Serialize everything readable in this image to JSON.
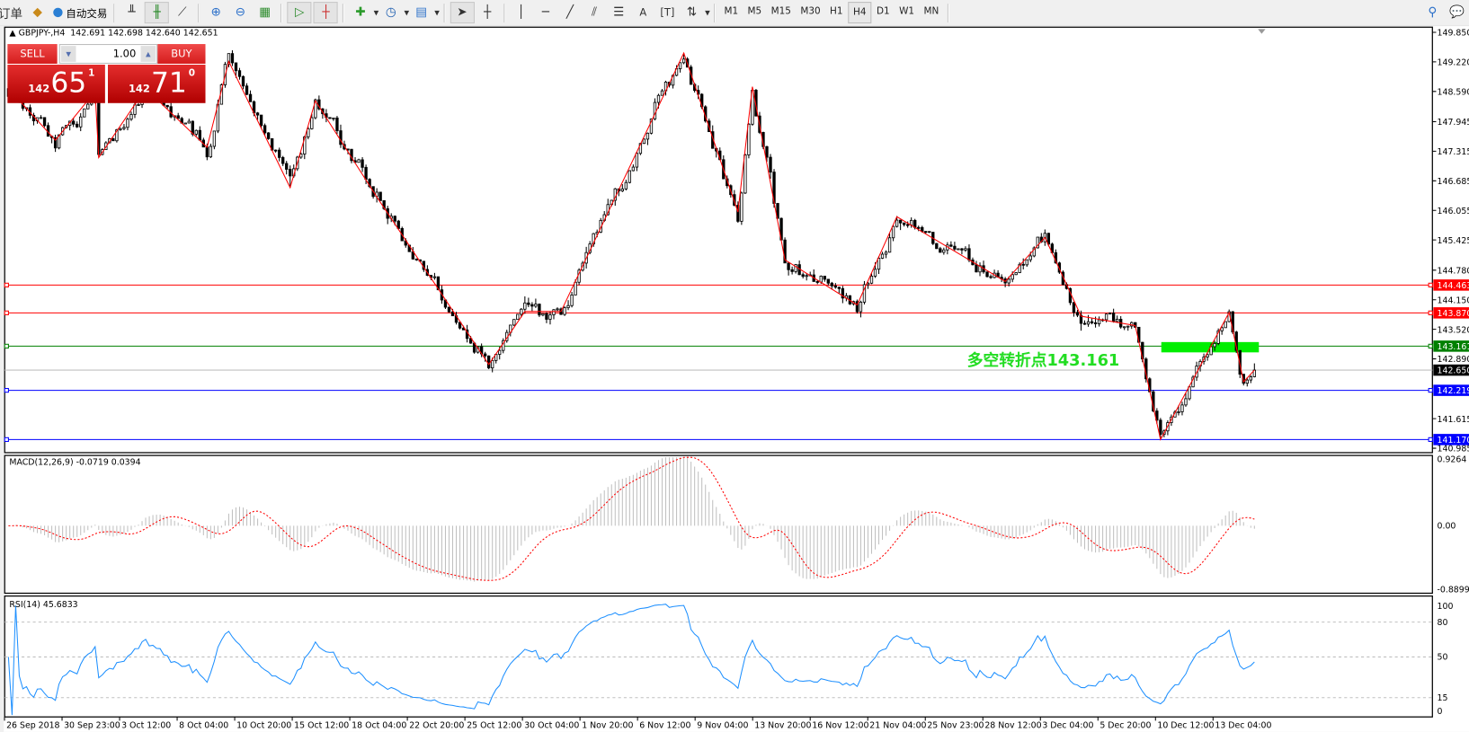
{
  "toolbar": {
    "order_label": "订单",
    "autotrade_label": "自动交易",
    "timeframes": [
      "M1",
      "M5",
      "M15",
      "M30",
      "H1",
      "H4",
      "D1",
      "W1",
      "MN"
    ],
    "active_timeframe": "H4"
  },
  "chart_header": {
    "symbol": "GBPJPY-,H4",
    "ohlc": "142.691 142.698 142.640 142.651"
  },
  "trade_panel": {
    "sell_label": "SELL",
    "buy_label": "BUY",
    "lot": "1.00",
    "sell_prefix": "142",
    "sell_big": "65",
    "sell_sup": "1",
    "buy_prefix": "142",
    "buy_big": "71",
    "buy_sup": "0"
  },
  "annotation": "多空转折点143.161",
  "price_axis": {
    "ticks": [
      "149.850",
      "149.220",
      "148.590",
      "147.945",
      "147.315",
      "146.685",
      "146.055",
      "145.425",
      "144.780",
      "144.150",
      "143.520",
      "142.890",
      "141.615",
      "140.985"
    ],
    "levels": [
      {
        "price": 144.463,
        "label": "144.463",
        "color": "#ff0000"
      },
      {
        "price": 143.87,
        "label": "143.870",
        "color": "#ff0000"
      },
      {
        "price": 143.161,
        "label": "143.161",
        "color": "#008000"
      },
      {
        "price": 142.219,
        "label": "142.219",
        "color": "#0000ff"
      },
      {
        "price": 141.17,
        "label": "141.170",
        "color": "#0000ff"
      }
    ],
    "bid": {
      "price": 142.65,
      "label": "142.650",
      "color": "#000000"
    }
  },
  "time_axis": [
    "26 Sep 2018",
    "30 Sep 23:00",
    "3 Oct 12:00",
    "8 Oct 04:00",
    "10 Oct 20:00",
    "15 Oct 12:00",
    "18 Oct 04:00",
    "22 Oct 20:00",
    "25 Oct 12:00",
    "30 Oct 04:00",
    "1 Nov 20:00",
    "6 Nov 12:00",
    "9 Nov 04:00",
    "13 Nov 20:00",
    "16 Nov 12:00",
    "21 Nov 04:00",
    "25 Nov 23:00",
    "28 Nov 12:00",
    "3 Dec 04:00",
    "5 Dec 20:00",
    "10 Dec 12:00",
    "13 Dec 04:00"
  ],
  "zigzag": [
    {
      "bar": 0,
      "price": 148.65
    },
    {
      "bar": 13,
      "price": 147.55
    },
    {
      "bar": 24,
      "price": 148.59
    },
    {
      "bar": 25,
      "price": 147.18
    },
    {
      "bar": 38,
      "price": 148.65
    },
    {
      "bar": 55,
      "price": 147.4
    },
    {
      "bar": 61,
      "price": 149.23
    },
    {
      "bar": 78,
      "price": 146.54
    },
    {
      "bar": 85,
      "price": 148.39
    },
    {
      "bar": 102,
      "price": 146.34
    },
    {
      "bar": 133,
      "price": 142.77
    },
    {
      "bar": 143,
      "price": 143.9
    },
    {
      "bar": 153,
      "price": 143.9
    },
    {
      "bar": 187,
      "price": 149.41
    },
    {
      "bar": 202,
      "price": 146.02
    },
    {
      "bar": 206,
      "price": 148.69
    },
    {
      "bar": 215,
      "price": 145.0
    },
    {
      "bar": 235,
      "price": 144.04
    },
    {
      "bar": 246,
      "price": 145.92
    },
    {
      "bar": 276,
      "price": 144.54
    },
    {
      "bar": 287,
      "price": 145.48
    },
    {
      "bar": 297,
      "price": 143.8
    },
    {
      "bar": 312,
      "price": 143.6
    },
    {
      "bar": 319,
      "price": 141.17
    },
    {
      "bar": 338,
      "price": 143.88
    },
    {
      "bar": 342,
      "price": 142.4
    },
    {
      "bar": 345,
      "price": 142.65
    }
  ],
  "macd": {
    "label": "MACD(12,26,9) -0.0719 0.0394",
    "axis": [
      "0.9264",
      "0.00",
      "-0.8899"
    ],
    "histogram_color": "#c0c0c0",
    "signal_color": "#ff0000"
  },
  "rsi": {
    "label": "RSI(14) 45.6833",
    "axis": [
      "100",
      "80",
      "50",
      "15",
      "0"
    ],
    "line_color": "#1e90ff"
  },
  "colors": {
    "zigzag": "#ff0000",
    "pivot_band": "#00ee00",
    "annotation": "#22dd22"
  }
}
